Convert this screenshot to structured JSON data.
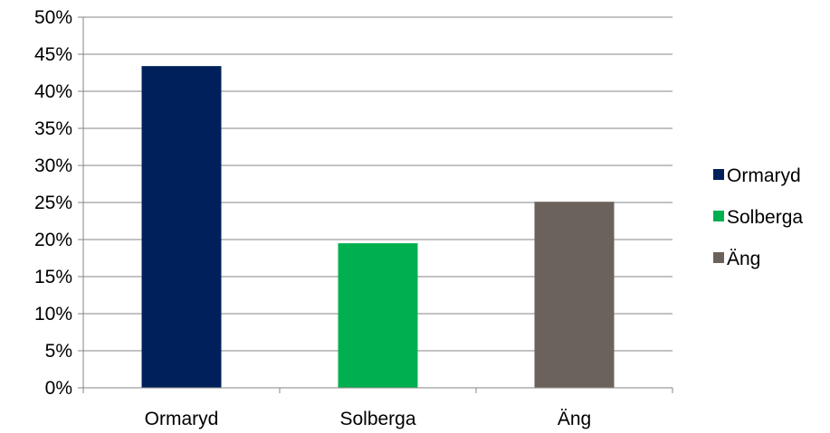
{
  "chart_data": {
    "type": "bar",
    "categories": [
      "Ormaryd",
      "Solberga",
      "Äng"
    ],
    "values": [
      43.4,
      19.5,
      25.1
    ],
    "colors": [
      "#00205b",
      "#00b050",
      "#6b625b"
    ],
    "ylim": [
      0,
      50
    ],
    "y_ticks": [
      "0%",
      "5%",
      "10%",
      "15%",
      "20%",
      "25%",
      "30%",
      "35%",
      "40%",
      "45%",
      "50%"
    ],
    "y_unit": "percent",
    "grid": true,
    "legend": {
      "position": "right",
      "entries": [
        "Ormaryd",
        "Solberga",
        "Äng"
      ]
    }
  }
}
